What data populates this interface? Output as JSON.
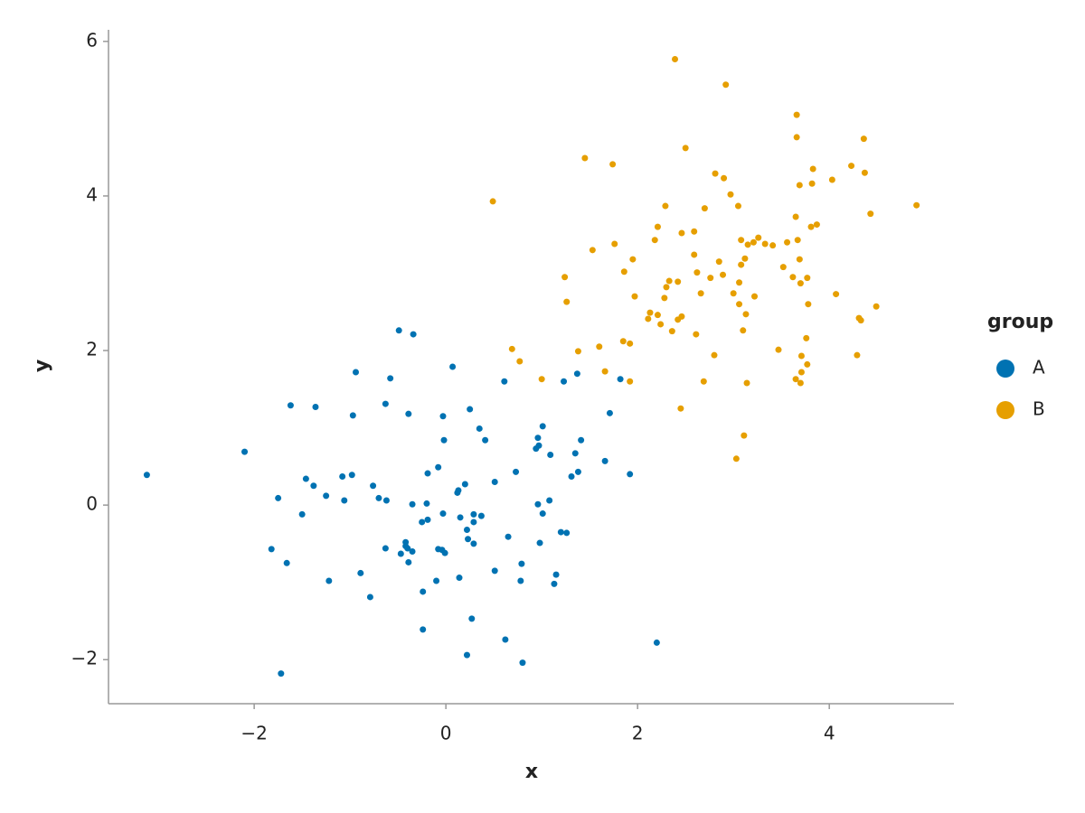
{
  "chart_data": {
    "type": "scatter",
    "x_label": "x",
    "y_label": "y",
    "legend_title": "group",
    "xlim": [
      -3.52,
      5.3
    ],
    "ylim": [
      -2.57,
      6.15
    ],
    "xticks": [
      {
        "value": -2,
        "label": "−2"
      },
      0,
      2,
      4
    ],
    "yticks": [
      {
        "value": -2,
        "label": "−2"
      },
      0,
      2,
      4,
      6
    ],
    "series": [
      {
        "name": "A",
        "color": "#0072b2",
        "x": [
          -3.12,
          -2.1,
          -0.49,
          -0.34,
          0.07,
          -0.94,
          -0.58,
          -1.62,
          -1.36,
          -0.97,
          -0.63,
          -0.39,
          -0.03,
          -0.02,
          0.61,
          1.37,
          1.23,
          1.71,
          0.25,
          0.35,
          0.41,
          1.01,
          0.96,
          0.97,
          0.94,
          1.09,
          1.41,
          1.35,
          0.73,
          0.51,
          -0.08,
          -0.19,
          -0.76,
          -1.08,
          -0.98,
          -1.46,
          -1.38,
          -1.75,
          -1.25,
          -1.06,
          -0.7,
          -0.62,
          -0.35,
          -0.2,
          -0.03,
          0.12,
          0.13,
          0.2,
          0.15,
          0.22,
          0.23,
          0.29,
          0.29,
          0.37,
          0.29,
          -0.04,
          -0.01,
          -0.08,
          -0.25,
          -0.19,
          -0.42,
          -0.42,
          -0.4,
          -0.35,
          -0.47,
          -0.39,
          -0.63,
          -1.82,
          -1.66,
          -1.22,
          -0.89,
          -0.79,
          -0.24,
          -0.1,
          0.14,
          0.51,
          0.65,
          0.79,
          0.78,
          1.15,
          1.13,
          0.98,
          1.01,
          0.96,
          1.08,
          1.2,
          1.26,
          1.31,
          1.38,
          1.66,
          1.92,
          1.82,
          -0.24,
          0.27,
          0.22,
          0.62,
          0.8,
          -1.72,
          2.2,
          -1.5
        ],
        "y": [
          0.39,
          0.69,
          2.26,
          2.21,
          1.79,
          1.72,
          1.64,
          1.29,
          1.27,
          1.16,
          1.31,
          1.18,
          1.15,
          0.84,
          1.6,
          1.7,
          1.6,
          1.19,
          1.24,
          0.99,
          0.84,
          1.02,
          0.87,
          0.77,
          0.73,
          0.65,
          0.84,
          0.67,
          0.43,
          0.3,
          0.49,
          0.41,
          0.25,
          0.37,
          0.39,
          0.34,
          0.25,
          0.09,
          0.12,
          0.06,
          0.09,
          0.06,
          0.01,
          0.02,
          -0.11,
          0.16,
          0.19,
          0.27,
          -0.16,
          -0.32,
          -0.44,
          -0.12,
          -0.22,
          -0.14,
          -0.5,
          -0.58,
          -0.62,
          -0.57,
          -0.22,
          -0.19,
          -0.48,
          -0.53,
          -0.56,
          -0.6,
          -0.63,
          -0.74,
          -0.56,
          -0.57,
          -0.75,
          -0.98,
          -0.88,
          -1.19,
          -1.12,
          -0.98,
          -0.94,
          -0.85,
          -0.41,
          -0.76,
          -0.98,
          -0.9,
          -1.02,
          -0.49,
          -0.11,
          0.01,
          0.06,
          -0.35,
          -0.36,
          0.37,
          0.43,
          0.57,
          0.4,
          1.63,
          -1.61,
          -1.47,
          -1.94,
          -1.74,
          -2.04,
          -2.18,
          -1.78,
          -0.12
        ]
      },
      {
        "name": "B",
        "color": "#e69f00",
        "x": [
          2.39,
          2.92,
          3.66,
          4.36,
          3.66,
          1.45,
          1.74,
          2.5,
          4.23,
          4.37,
          2.81,
          2.9,
          3.83,
          4.03,
          3.69,
          3.82,
          2.97,
          4.91,
          0.49,
          2.29,
          3.05,
          3.65,
          4.43,
          2.7,
          2.21,
          3.81,
          3.87,
          3.56,
          2.18,
          2.46,
          3.15,
          3.26,
          3.21,
          3.08,
          1.76,
          1.53,
          1.86,
          1.95,
          2.85,
          3.67,
          2.33,
          2.62,
          2.59,
          2.59,
          3.69,
          3.77,
          3.41,
          1.24,
          1.26,
          2.3,
          2.42,
          2.76,
          2.89,
          3.08,
          3.12,
          3.52,
          3.62,
          3.7,
          3.33,
          1.97,
          2.28,
          2.66,
          3.06,
          3.0,
          3.22,
          4.07,
          4.49,
          2.13,
          2.11,
          2.21,
          2.24,
          2.46,
          2.42,
          3.06,
          3.13,
          2.36,
          2.61,
          3.78,
          4.31,
          4.33,
          0.69,
          0.77,
          1.38,
          1.6,
          1.85,
          1.92,
          2.8,
          3.47,
          3.1,
          3.71,
          3.76,
          4.29,
          3.77,
          1.0,
          1.66,
          1.92,
          2.69,
          3.14,
          3.65,
          3.7,
          3.71,
          2.45,
          3.11,
          3.03
        ],
        "y": [
          5.77,
          5.44,
          5.05,
          4.74,
          4.76,
          4.49,
          4.41,
          4.62,
          4.39,
          4.3,
          4.29,
          4.23,
          4.35,
          4.21,
          4.14,
          4.16,
          4.02,
          3.88,
          3.93,
          3.87,
          3.87,
          3.73,
          3.77,
          3.84,
          3.6,
          3.6,
          3.63,
          3.4,
          3.43,
          3.52,
          3.37,
          3.46,
          3.4,
          3.43,
          3.38,
          3.3,
          3.02,
          3.18,
          3.15,
          3.43,
          2.9,
          3.01,
          3.54,
          3.24,
          3.18,
          2.94,
          3.36,
          2.95,
          2.63,
          2.82,
          2.89,
          2.94,
          2.98,
          3.11,
          3.19,
          3.08,
          2.95,
          2.87,
          3.38,
          2.7,
          2.68,
          2.74,
          2.88,
          2.74,
          2.7,
          2.73,
          2.57,
          2.49,
          2.41,
          2.46,
          2.34,
          2.44,
          2.4,
          2.6,
          2.47,
          2.25,
          2.21,
          2.6,
          2.42,
          2.39,
          2.02,
          1.86,
          1.99,
          2.05,
          2.12,
          2.09,
          1.94,
          2.01,
          2.26,
          1.93,
          2.16,
          1.94,
          1.82,
          1.63,
          1.73,
          1.6,
          1.6,
          1.58,
          1.63,
          1.58,
          1.72,
          1.25,
          0.9,
          0.6
        ]
      }
    ]
  }
}
